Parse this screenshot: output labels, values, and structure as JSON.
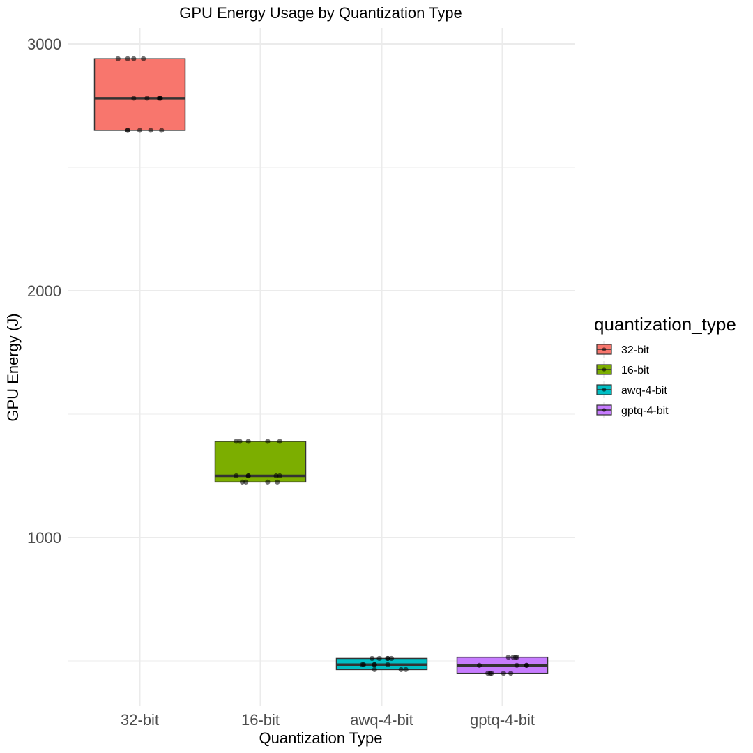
{
  "chart_data": {
    "type": "boxplot",
    "title": "GPU Energy Usage by Quantization Type",
    "xlabel": "Quantization Type",
    "ylabel": "GPU Energy (J)",
    "ylim": [
      380,
      3065
    ],
    "yticks": [
      1000,
      2000,
      3000
    ],
    "ygrid_minor": [
      500,
      1500,
      2500
    ],
    "grid": true,
    "legend": {
      "title": "quantization_type",
      "position": "right",
      "entries": [
        "32-bit",
        "16-bit",
        "awq-4-bit",
        "gptq-4-bit"
      ]
    },
    "categories": [
      "32-bit",
      "16-bit",
      "awq-4-bit",
      "gptq-4-bit"
    ],
    "colors": {
      "32-bit": "#F8766D",
      "16-bit": "#7CAE00",
      "awq-4-bit": "#00BFC4",
      "gptq-4-bit": "#C77CFF"
    },
    "boxes": [
      {
        "category": "32-bit",
        "q1": 2650,
        "median": 2780,
        "q3": 2940,
        "min": 2650,
        "max": 2940
      },
      {
        "category": "16-bit",
        "q1": 1225,
        "median": 1250,
        "q3": 1390,
        "min": 1225,
        "max": 1390
      },
      {
        "category": "awq-4-bit",
        "q1": 465,
        "median": 485,
        "q3": 510,
        "min": 465,
        "max": 510
      },
      {
        "category": "gptq-4-bit",
        "q1": 450,
        "median": 482,
        "q3": 515,
        "min": 450,
        "max": 515
      }
    ],
    "points": [
      {
        "category": "32-bit",
        "x": [
          -0.18,
          -0.1,
          -0.05,
          0.03,
          0.17,
          -0.05,
          0.06,
          0.17,
          -0.1,
          -0.1,
          0.0,
          0.09,
          0.18,
          0.16
        ],
        "y": [
          2940,
          2940,
          2940,
          2940,
          2780,
          2780,
          2780,
          2780,
          2650,
          2650,
          2650,
          2650,
          2650,
          2780
        ]
      },
      {
        "category": "16-bit",
        "x": [
          -0.2,
          -0.1,
          0.06,
          0.16,
          -0.2,
          -0.1,
          0.16,
          -0.1,
          -0.15,
          0.06,
          0.14,
          -0.12,
          -0.17,
          0.13
        ],
        "y": [
          1390,
          1390,
          1390,
          1390,
          1250,
          1250,
          1250,
          1250,
          1225,
          1225,
          1225,
          1225,
          1390,
          1250
        ]
      },
      {
        "category": "awq-4-bit",
        "x": [
          -0.08,
          -0.02,
          0.05,
          0.08,
          -0.16,
          -0.06,
          0.05,
          -0.06,
          0.16,
          0.2,
          -0.06,
          0.05,
          -0.15
        ],
        "y": [
          510,
          510,
          510,
          510,
          485,
          485,
          485,
          465,
          465,
          465,
          485,
          510,
          485
        ]
      },
      {
        "category": "gptq-4-bit",
        "x": [
          0.05,
          0.09,
          0.12,
          -0.19,
          0.12,
          0.2,
          -0.12,
          -0.09,
          0.01,
          0.07,
          0.11,
          0.2,
          -0.1
        ],
        "y": [
          515,
          515,
          515,
          482,
          482,
          482,
          450,
          450,
          450,
          450,
          515,
          482,
          450
        ]
      }
    ]
  }
}
